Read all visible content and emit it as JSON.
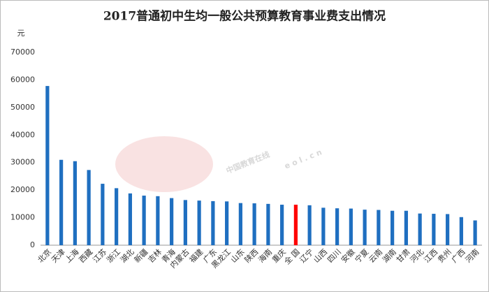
{
  "chart_data": {
    "type": "bar",
    "title": "2017普通初中生均一般公共预算教育事业费支出情况",
    "y_unit": "元",
    "watermark": [
      "中国教育在线",
      "e o l . c n"
    ],
    "categories": [
      "北京",
      "天津",
      "上海",
      "西藏",
      "江苏",
      "浙江",
      "湖北",
      "新疆",
      "吉林",
      "青海",
      "内蒙古",
      "福建",
      "广东",
      "黑龙江",
      "山东",
      "陕西",
      "海南",
      "重庆",
      "全 国",
      "辽宁",
      "山西",
      "四川",
      "安徽",
      "宁夏",
      "云南",
      "湖南",
      "甘肃",
      "河北",
      "江西",
      "贵州",
      "广西",
      "河南"
    ],
    "values": [
      57800,
      31000,
      30500,
      27300,
      22300,
      20700,
      18800,
      18000,
      17800,
      17100,
      16400,
      16200,
      16000,
      15900,
      15300,
      15200,
      15000,
      14700,
      14700,
      14500,
      13600,
      13400,
      13300,
      12900,
      12800,
      12500,
      12500,
      11500,
      11400,
      11300,
      10200,
      9000
    ],
    "colors": [
      "#1f6fc0",
      "#1f6fc0",
      "#1f6fc0",
      "#1f6fc0",
      "#1f6fc0",
      "#1f6fc0",
      "#1f6fc0",
      "#1f6fc0",
      "#1f6fc0",
      "#1f6fc0",
      "#1f6fc0",
      "#1f6fc0",
      "#1f6fc0",
      "#1f6fc0",
      "#1f6fc0",
      "#1f6fc0",
      "#1f6fc0",
      "#1f6fc0",
      "#ff0000",
      "#1f6fc0",
      "#1f6fc0",
      "#1f6fc0",
      "#1f6fc0",
      "#1f6fc0",
      "#1f6fc0",
      "#1f6fc0",
      "#1f6fc0",
      "#1f6fc0",
      "#1f6fc0",
      "#1f6fc0",
      "#1f6fc0",
      "#1f6fc0"
    ],
    "ylim": [
      0,
      70000
    ],
    "yticks": [
      0,
      10000,
      20000,
      30000,
      40000,
      50000,
      60000,
      70000
    ],
    "grid": false
  }
}
